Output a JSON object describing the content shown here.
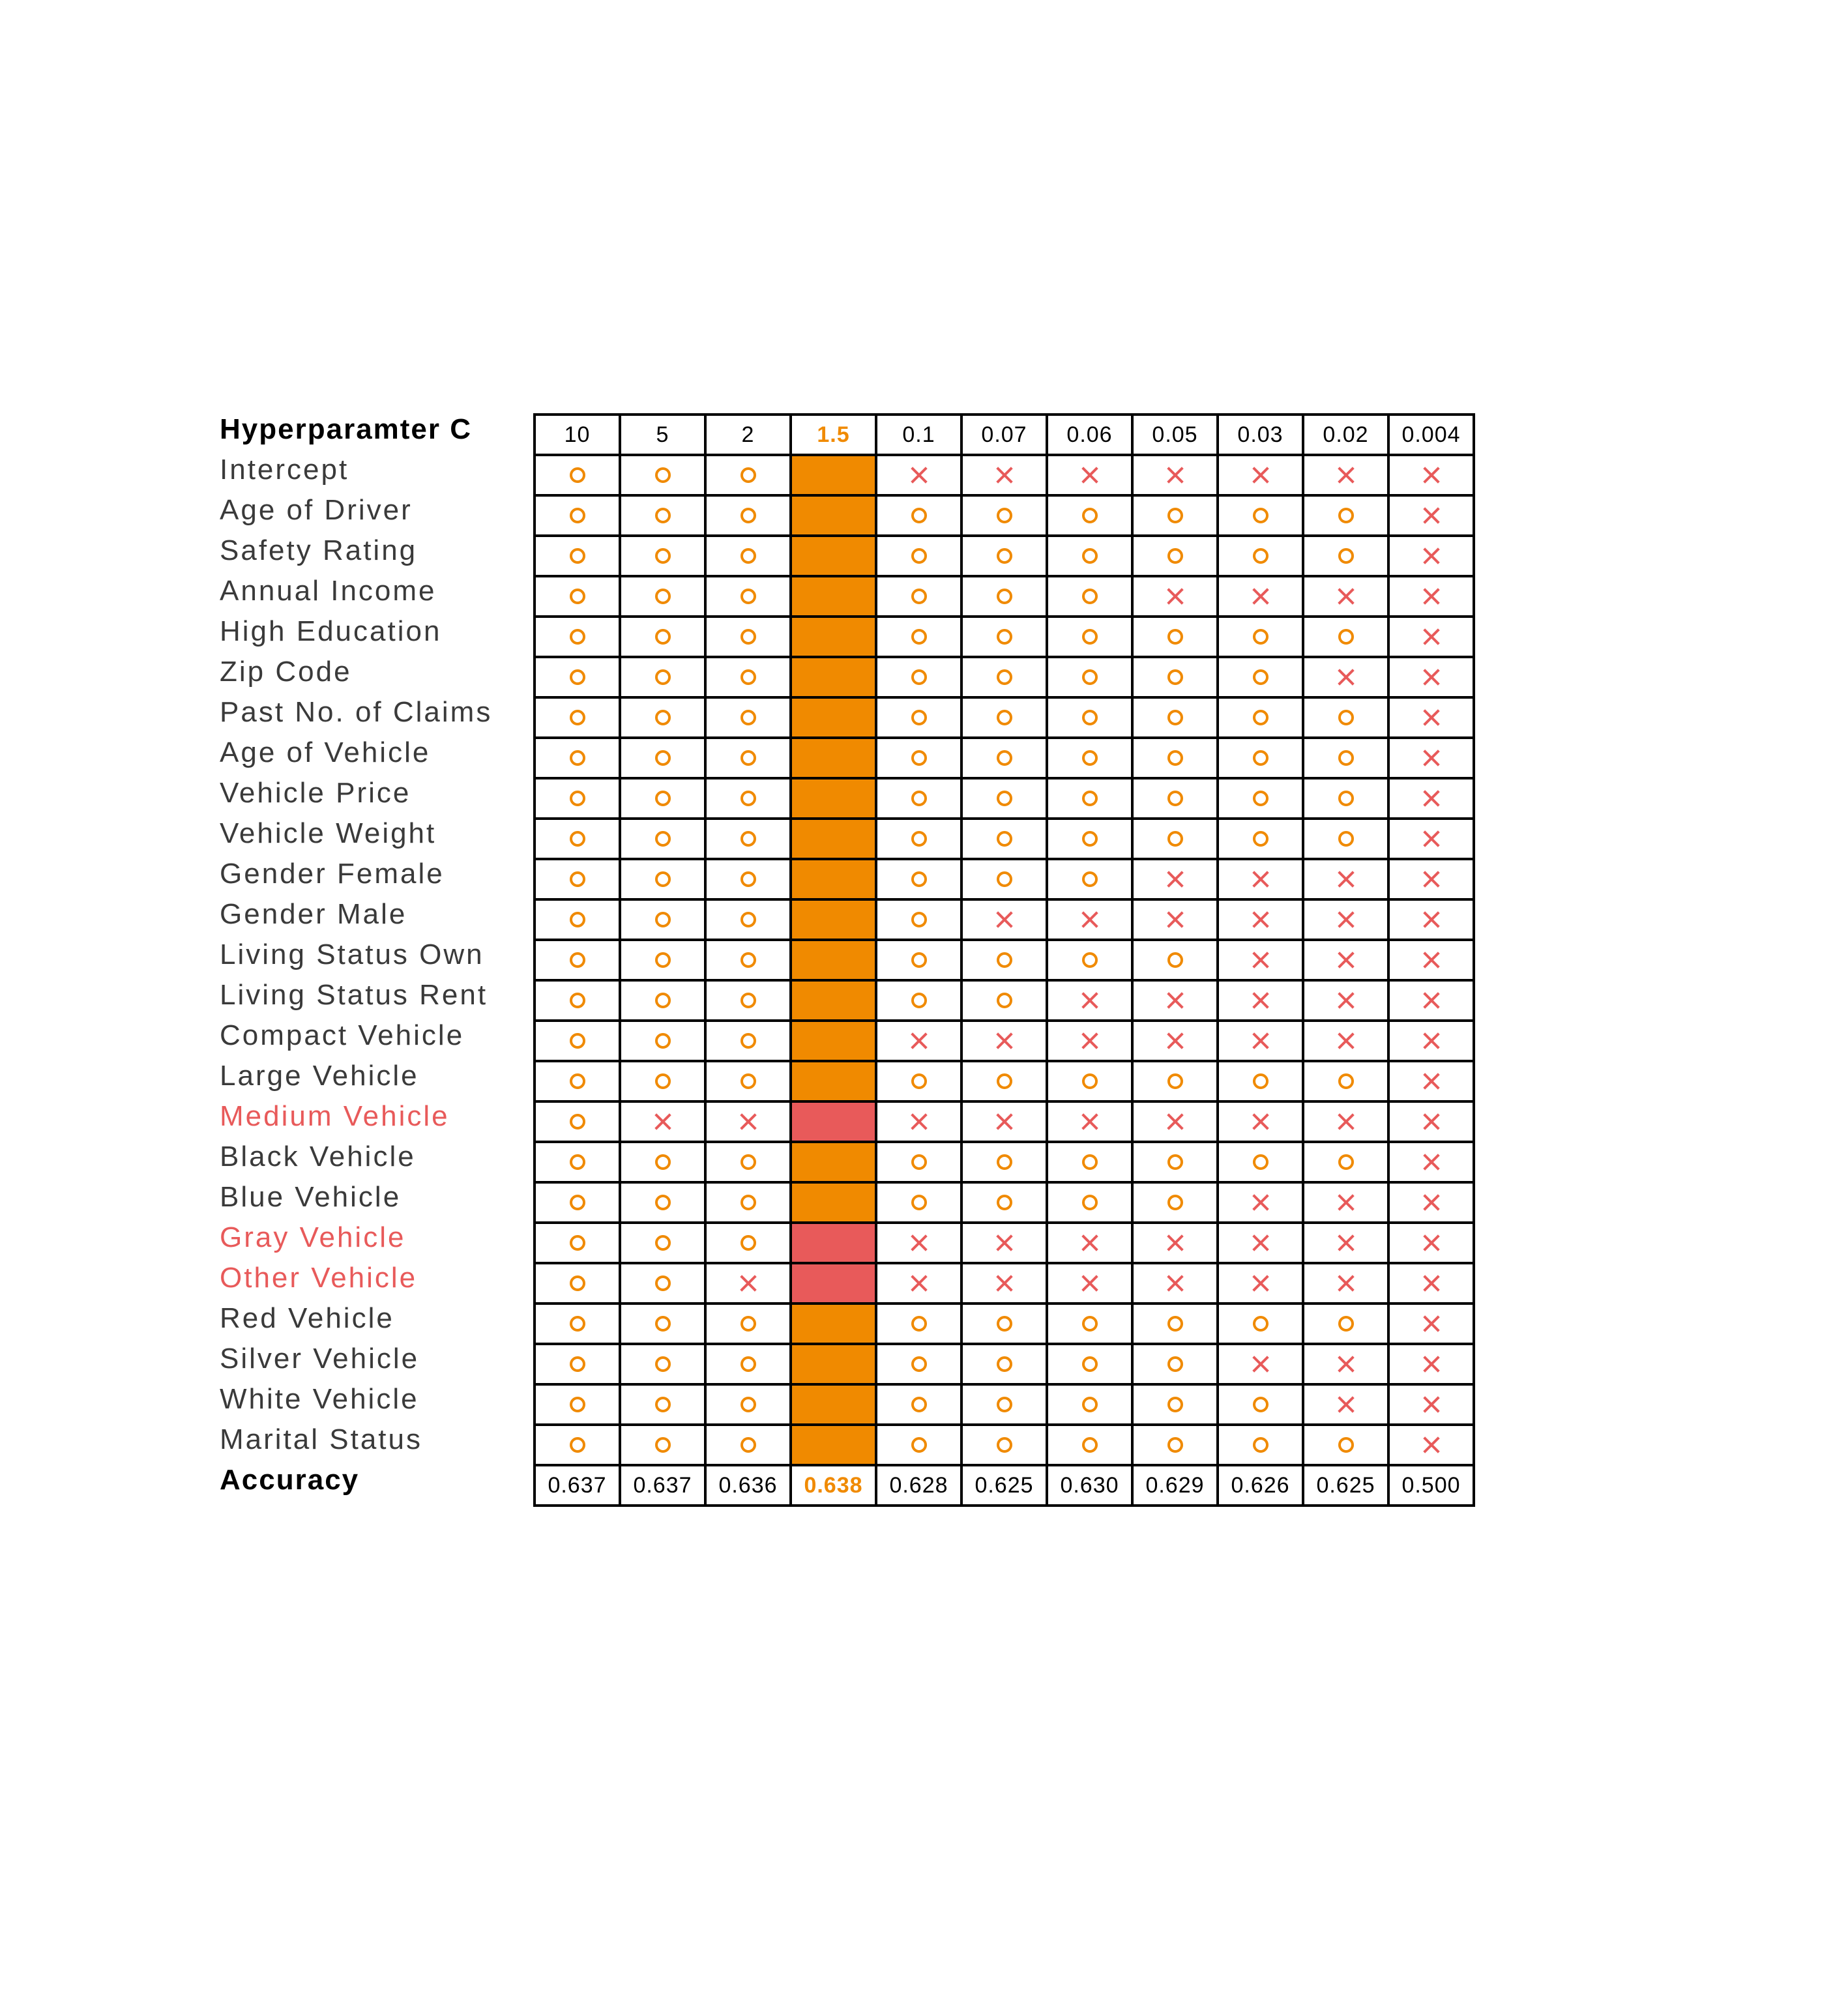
{
  "header_label": "Hyperparamter C",
  "accuracy_label": "Accuracy",
  "best_column_index": 3,
  "colors": {
    "select_mark": "#f08a00",
    "drop_mark": "#e85a5a",
    "best_column_fill": "#f08a00",
    "dropped_feature_fill": "#e85a5a",
    "highlight_label": "#e85a5a"
  },
  "columns": [
    "10",
    "5",
    "2",
    "1.5",
    "0.1",
    "0.07",
    "0.06",
    "0.05",
    "0.03",
    "0.02",
    "0.004"
  ],
  "accuracy": [
    "0.637",
    "0.637",
    "0.636",
    "0.638",
    "0.628",
    "0.625",
    "0.630",
    "0.629",
    "0.626",
    "0.625",
    "0.500"
  ],
  "legend_marks": {
    "o": "circle-icon (selected)",
    "x": "cross-icon (dropped)"
  },
  "rows": [
    {
      "label": "Intercept",
      "highlight": false,
      "cells": [
        "o",
        "o",
        "o",
        "-",
        "x",
        "x",
        "x",
        "x",
        "x",
        "x",
        "x"
      ]
    },
    {
      "label": "Age of Driver",
      "highlight": false,
      "cells": [
        "o",
        "o",
        "o",
        "-",
        "o",
        "o",
        "o",
        "o",
        "o",
        "o",
        "x"
      ]
    },
    {
      "label": "Safety Rating",
      "highlight": false,
      "cells": [
        "o",
        "o",
        "o",
        "-",
        "o",
        "o",
        "o",
        "o",
        "o",
        "o",
        "x"
      ]
    },
    {
      "label": "Annual Income",
      "highlight": false,
      "cells": [
        "o",
        "o",
        "o",
        "-",
        "o",
        "o",
        "o",
        "x",
        "x",
        "x",
        "x"
      ]
    },
    {
      "label": "High Education",
      "highlight": false,
      "cells": [
        "o",
        "o",
        "o",
        "-",
        "o",
        "o",
        "o",
        "o",
        "o",
        "o",
        "x"
      ]
    },
    {
      "label": "Zip Code",
      "highlight": false,
      "cells": [
        "o",
        "o",
        "o",
        "-",
        "o",
        "o",
        "o",
        "o",
        "o",
        "x",
        "x"
      ]
    },
    {
      "label": "Past No. of Claims",
      "highlight": false,
      "cells": [
        "o",
        "o",
        "o",
        "-",
        "o",
        "o",
        "o",
        "o",
        "o",
        "o",
        "x"
      ]
    },
    {
      "label": "Age of Vehicle",
      "highlight": false,
      "cells": [
        "o",
        "o",
        "o",
        "-",
        "o",
        "o",
        "o",
        "o",
        "o",
        "o",
        "x"
      ]
    },
    {
      "label": "Vehicle Price",
      "highlight": false,
      "cells": [
        "o",
        "o",
        "o",
        "-",
        "o",
        "o",
        "o",
        "o",
        "o",
        "o",
        "x"
      ]
    },
    {
      "label": "Vehicle Weight",
      "highlight": false,
      "cells": [
        "o",
        "o",
        "o",
        "-",
        "o",
        "o",
        "o",
        "o",
        "o",
        "o",
        "x"
      ]
    },
    {
      "label": "Gender Female",
      "highlight": false,
      "cells": [
        "o",
        "o",
        "o",
        "-",
        "o",
        "o",
        "o",
        "x",
        "x",
        "x",
        "x"
      ]
    },
    {
      "label": "Gender Male",
      "highlight": false,
      "cells": [
        "o",
        "o",
        "o",
        "-",
        "o",
        "x",
        "x",
        "x",
        "x",
        "x",
        "x"
      ]
    },
    {
      "label": "Living Status Own",
      "highlight": false,
      "cells": [
        "o",
        "o",
        "o",
        "-",
        "o",
        "o",
        "o",
        "o",
        "x",
        "x",
        "x"
      ]
    },
    {
      "label": "Living Status Rent",
      "highlight": false,
      "cells": [
        "o",
        "o",
        "o",
        "-",
        "o",
        "o",
        "x",
        "x",
        "x",
        "x",
        "x"
      ]
    },
    {
      "label": "Compact Vehicle",
      "highlight": false,
      "cells": [
        "o",
        "o",
        "o",
        "-",
        "x",
        "x",
        "x",
        "x",
        "x",
        "x",
        "x"
      ]
    },
    {
      "label": "Large Vehicle",
      "highlight": false,
      "cells": [
        "o",
        "o",
        "o",
        "-",
        "o",
        "o",
        "o",
        "o",
        "o",
        "o",
        "x"
      ]
    },
    {
      "label": "Medium Vehicle",
      "highlight": true,
      "cells": [
        "o",
        "x",
        "x",
        "-",
        "x",
        "x",
        "x",
        "x",
        "x",
        "x",
        "x"
      ]
    },
    {
      "label": "Black Vehicle",
      "highlight": false,
      "cells": [
        "o",
        "o",
        "o",
        "-",
        "o",
        "o",
        "o",
        "o",
        "o",
        "o",
        "x"
      ]
    },
    {
      "label": "Blue Vehicle",
      "highlight": false,
      "cells": [
        "o",
        "o",
        "o",
        "-",
        "o",
        "o",
        "o",
        "o",
        "x",
        "x",
        "x"
      ]
    },
    {
      "label": "Gray Vehicle",
      "highlight": true,
      "cells": [
        "o",
        "o",
        "o",
        "-",
        "x",
        "x",
        "x",
        "x",
        "x",
        "x",
        "x"
      ]
    },
    {
      "label": "Other Vehicle",
      "highlight": true,
      "cells": [
        "o",
        "o",
        "x",
        "-",
        "x",
        "x",
        "x",
        "x",
        "x",
        "x",
        "x"
      ]
    },
    {
      "label": "Red Vehicle",
      "highlight": false,
      "cells": [
        "o",
        "o",
        "o",
        "-",
        "o",
        "o",
        "o",
        "o",
        "o",
        "o",
        "x"
      ]
    },
    {
      "label": "Silver Vehicle",
      "highlight": false,
      "cells": [
        "o",
        "o",
        "o",
        "-",
        "o",
        "o",
        "o",
        "o",
        "x",
        "x",
        "x"
      ]
    },
    {
      "label": "White Vehicle",
      "highlight": false,
      "cells": [
        "o",
        "o",
        "o",
        "-",
        "o",
        "o",
        "o",
        "o",
        "o",
        "x",
        "x"
      ]
    },
    {
      "label": "Marital Status",
      "highlight": false,
      "cells": [
        "o",
        "o",
        "o",
        "-",
        "o",
        "o",
        "o",
        "o",
        "o",
        "o",
        "x"
      ]
    }
  ]
}
